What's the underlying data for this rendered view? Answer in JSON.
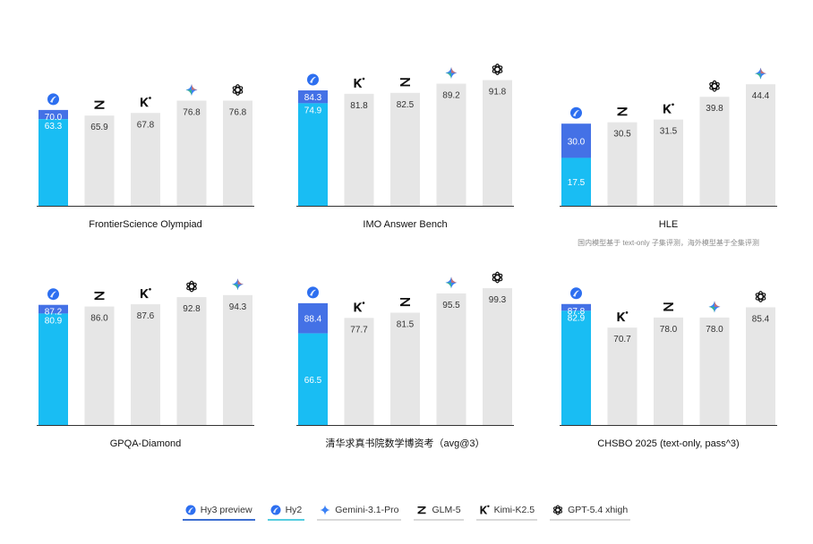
{
  "chart_data": [
    {
      "type": "bar",
      "title": "FrontierScience Olympiad",
      "ylim": [
        0,
        100
      ],
      "categories": [
        "Hy3 preview",
        "GLM-5",
        "Kimi-K2.5",
        "Gemini-3.1-Pro",
        "GPT-5.4 xhigh"
      ],
      "series": [
        {
          "name": "Hy3 preview",
          "values": [
            70.0,
            null,
            null,
            null,
            null
          ]
        },
        {
          "name": "Hy2",
          "values": [
            63.3,
            null,
            null,
            null,
            null
          ]
        },
        {
          "name": "Others",
          "values": [
            null,
            65.9,
            67.8,
            76.8,
            76.8
          ]
        }
      ]
    },
    {
      "type": "bar",
      "title": "IMO Answer Bench",
      "ylim": [
        0,
        100
      ],
      "categories": [
        "Hy3 preview",
        "Kimi-K2.5",
        "GLM-5",
        "Gemini-3.1-Pro",
        "GPT-5.4 xhigh"
      ],
      "series": [
        {
          "name": "Hy3 preview",
          "values": [
            84.3,
            null,
            null,
            null,
            null
          ]
        },
        {
          "name": "Hy2",
          "values": [
            74.9,
            null,
            null,
            null,
            null
          ]
        },
        {
          "name": "Others",
          "values": [
            null,
            81.8,
            82.5,
            89.2,
            91.8
          ]
        }
      ]
    },
    {
      "type": "bar",
      "title": "HLE",
      "subtitle": "国内模型基于 text-only 子集评测，海外模型基于全集评测",
      "ylim": [
        0,
        50
      ],
      "categories": [
        "Hy3 preview",
        "GLM-5",
        "Kimi-K2.5",
        "GPT-5.4 xhigh",
        "Gemini-3.1-Pro"
      ],
      "series": [
        {
          "name": "Hy3 preview",
          "values": [
            30.0,
            null,
            null,
            null,
            null
          ]
        },
        {
          "name": "Hy2",
          "values": [
            17.5,
            null,
            null,
            null,
            null
          ]
        },
        {
          "name": "Others",
          "values": [
            null,
            30.5,
            31.5,
            39.8,
            44.4
          ]
        }
      ]
    },
    {
      "type": "bar",
      "title": "GPQA-Diamond",
      "ylim": [
        0,
        100
      ],
      "categories": [
        "Hy3 preview",
        "GLM-5",
        "Kimi-K2.5",
        "GPT-5.4 xhigh",
        "Gemini-3.1-Pro"
      ],
      "series": [
        {
          "name": "Hy3 preview",
          "values": [
            87.2,
            null,
            null,
            null,
            null
          ]
        },
        {
          "name": "Hy2",
          "values": [
            80.9,
            null,
            null,
            null,
            null
          ]
        },
        {
          "name": "Others",
          "values": [
            null,
            86.0,
            87.6,
            92.8,
            94.3
          ]
        }
      ]
    },
    {
      "type": "bar",
      "title": "清华求真书院数学博资考（avg@3）",
      "ylim": [
        0,
        100
      ],
      "categories": [
        "Hy3 preview",
        "Kimi-K2.5",
        "GLM-5",
        "Gemini-3.1-Pro",
        "GPT-5.4 xhigh"
      ],
      "series": [
        {
          "name": "Hy3 preview",
          "values": [
            88.4,
            null,
            null,
            null,
            null
          ]
        },
        {
          "name": "Hy2",
          "values": [
            66.5,
            null,
            null,
            null,
            null
          ]
        },
        {
          "name": "Others",
          "values": [
            null,
            77.7,
            81.5,
            95.5,
            99.3
          ]
        }
      ]
    },
    {
      "type": "bar",
      "title": "CHSBO 2025 (text-only, pass^3)",
      "ylim": [
        0,
        100
      ],
      "categories": [
        "Hy3 preview",
        "Kimi-K2.5",
        "GLM-5",
        "Gemini-3.1-Pro",
        "GPT-5.4 xhigh"
      ],
      "series": [
        {
          "name": "Hy3 preview",
          "values": [
            87.8,
            null,
            null,
            null,
            null
          ]
        },
        {
          "name": "Hy2",
          "values": [
            82.9,
            null,
            null,
            null,
            null
          ]
        },
        {
          "name": "Others",
          "values": [
            null,
            70.7,
            78.0,
            78.0,
            85.4
          ]
        }
      ]
    }
  ],
  "legend": [
    {
      "key": "hy3",
      "label": "Hy3 preview",
      "icon": "hunyuan-icon"
    },
    {
      "key": "hy2",
      "label": "Hy2",
      "icon": "hunyuan-icon"
    },
    {
      "key": "gemini",
      "label": "Gemini-3.1-Pro",
      "icon": "gemini-icon"
    },
    {
      "key": "glm",
      "label": "GLM-5",
      "icon": "zhipu-icon"
    },
    {
      "key": "kimi",
      "label": "Kimi-K2.5",
      "icon": "kimi-icon"
    },
    {
      "key": "gpt",
      "label": "GPT-5.4 xhigh",
      "icon": "openai-icon"
    }
  ],
  "colors": {
    "hy3": "#4471e6",
    "hy2": "#19bdf3",
    "other": "#e6e6e6",
    "axis": "#333333"
  }
}
